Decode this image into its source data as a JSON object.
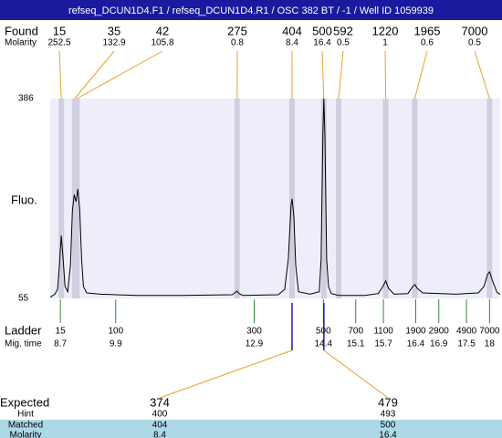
{
  "header": {
    "title": "refseq_DCUN1D4.F1 / refseq_DCUN1D4.R1 / OSC 382 BT / -1 / Well ID 1059939"
  },
  "found": {
    "label": "Found",
    "sublabel": "Molarity",
    "peaks": [
      {
        "size": 15,
        "molarity": 252.5,
        "time": 8.72
      },
      {
        "size": 35,
        "molarity": 132.9,
        "time": 9.01
      },
      {
        "size": 42,
        "molarity": 105.8,
        "time": 9.06
      },
      {
        "size": 275,
        "molarity": 0.8,
        "time": 12.53
      },
      {
        "size": 404,
        "molarity": 8.4,
        "time": 13.72
      },
      {
        "size": 500,
        "molarity": 16.4,
        "time": 14.41
      },
      {
        "size": 592,
        "molarity": 0.5,
        "time": 14.73
      },
      {
        "size": 1220,
        "molarity": 1,
        "time": 15.75
      },
      {
        "size": 1965,
        "molarity": 0.6,
        "time": 16.38
      },
      {
        "size": 7000,
        "molarity": 0.5,
        "time": 18.0
      }
    ]
  },
  "chart_data": {
    "type": "line",
    "ylabel": "Fluo.",
    "color": "#000000",
    "ylim": [
      55,
      386
    ],
    "yticks": [
      55,
      386
    ],
    "xlim": [
      8.48,
      18.23
    ],
    "x": [
      8.48,
      8.58,
      8.64,
      8.68,
      8.72,
      8.76,
      8.8,
      8.86,
      8.92,
      8.96,
      9.0,
      9.04,
      9.08,
      9.12,
      9.16,
      9.2,
      9.27,
      9.57,
      10.36,
      11.34,
      12.43,
      12.49,
      12.53,
      12.57,
      12.65,
      13.42,
      13.56,
      13.64,
      13.7,
      13.72,
      13.76,
      13.8,
      13.86,
      14.11,
      14.31,
      14.35,
      14.39,
      14.41,
      14.43,
      14.47,
      14.51,
      14.57,
      14.73,
      15.3,
      15.59,
      15.69,
      15.75,
      15.81,
      15.93,
      16.23,
      16.31,
      16.38,
      16.43,
      16.55,
      17.27,
      17.76,
      17.88,
      17.96,
      18.0,
      18.06,
      18.16,
      18.23
    ],
    "values": [
      57,
      62,
      70,
      110,
      159,
      120,
      75,
      66,
      110,
      200,
      227,
      215,
      236,
      200,
      120,
      75,
      64,
      62,
      60,
      60,
      61,
      65,
      67,
      63,
      60,
      61,
      70,
      120,
      210,
      220,
      190,
      110,
      66,
      62,
      66,
      120,
      330,
      386,
      330,
      120,
      75,
      63,
      60,
      60,
      63,
      75,
      84,
      72,
      62,
      63,
      72,
      78,
      72,
      64,
      62,
      64,
      75,
      95,
      99,
      85,
      65,
      62
    ]
  },
  "ladder": {
    "label": "Ladder",
    "sublabel": "Mig. time",
    "sizes": [
      15,
      100,
      300,
      500,
      700,
      1100,
      1900,
      2900,
      4900,
      7000
    ],
    "times": [
      8.7,
      9.9,
      12.9,
      14.4,
      15.1,
      15.7,
      16.4,
      16.9,
      17.5,
      18
    ]
  },
  "expected": {
    "label": "Expected",
    "hint_label": "Hint",
    "matched_label": "Matched",
    "molarity_label": "Molarity",
    "items": [
      {
        "expected": 374,
        "hint": 400,
        "matched": 404,
        "molarity": 8.4
      },
      {
        "expected": 479,
        "hint": 493,
        "matched": 500,
        "molarity": 16.4
      }
    ]
  }
}
